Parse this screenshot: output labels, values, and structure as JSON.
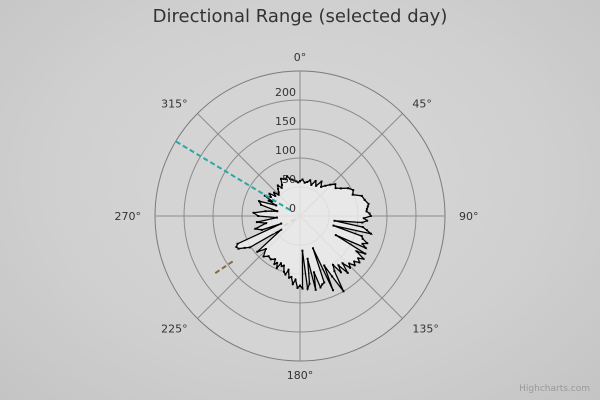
{
  "chart_data": {
    "type": "polar-line",
    "title": "Directional Range (selected day)",
    "credits": "Highcharts.com",
    "angle_labels": [
      "0°",
      "45°",
      "90°",
      "135°",
      "180°",
      "225°",
      "270°",
      "315°"
    ],
    "radial_tick_labels": [
      "0",
      "50",
      "100",
      "150",
      "200"
    ],
    "radial_range": [
      0,
      250
    ],
    "grid": true,
    "series": [
      {
        "type": "line",
        "color": "#000000",
        "points": [
          [
            0,
            60
          ],
          [
            4,
            63
          ],
          [
            8,
            58
          ],
          [
            12,
            60
          ],
          [
            16,
            64
          ],
          [
            20,
            57
          ],
          [
            24,
            66
          ],
          [
            28,
            59
          ],
          [
            32,
            70
          ],
          [
            36,
            62
          ],
          [
            40,
            68
          ],
          [
            44,
            75
          ],
          [
            48,
            82
          ],
          [
            52,
            78
          ],
          [
            56,
            85
          ],
          [
            60,
            96
          ],
          [
            64,
            102
          ],
          [
            68,
            98
          ],
          [
            72,
            112
          ],
          [
            76,
            115
          ],
          [
            80,
            120
          ],
          [
            82,
            118
          ],
          [
            84,
            116
          ],
          [
            86,
            115
          ],
          [
            88,
            120
          ],
          [
            90,
            122
          ],
          [
            92,
            110
          ],
          [
            94,
            116
          ],
          [
            96,
            108
          ],
          [
            98,
            60
          ],
          [
            100,
            110
          ],
          [
            102,
            118
          ],
          [
            104,
            126
          ],
          [
            106,
            60
          ],
          [
            108,
            112
          ],
          [
            110,
            115
          ],
          [
            112,
            125
          ],
          [
            114,
            118
          ],
          [
            116,
            126
          ],
          [
            118,
            70
          ],
          [
            120,
            130
          ],
          [
            122,
            115
          ],
          [
            124,
            132
          ],
          [
            126,
            124
          ],
          [
            128,
            130
          ],
          [
            130,
            122
          ],
          [
            132,
            127
          ],
          [
            134,
            118
          ],
          [
            136,
            124
          ],
          [
            138,
            110
          ],
          [
            140,
            128
          ],
          [
            142,
            108
          ],
          [
            144,
            120
          ],
          [
            146,
            102
          ],
          [
            148,
            112
          ],
          [
            150,
            150
          ],
          [
            152,
            118
          ],
          [
            154,
            95
          ],
          [
            156,
            140
          ],
          [
            158,
            60
          ],
          [
            160,
            122
          ],
          [
            162,
            124
          ],
          [
            164,
            128
          ],
          [
            166,
            100
          ],
          [
            168,
            130
          ],
          [
            170,
            75
          ],
          [
            172,
            118
          ],
          [
            174,
            126
          ],
          [
            176,
            60
          ],
          [
            178,
            125
          ],
          [
            180,
            120
          ],
          [
            182,
            124
          ],
          [
            184,
            110
          ],
          [
            186,
            118
          ],
          [
            188,
            106
          ],
          [
            190,
            108
          ],
          [
            192,
            95
          ],
          [
            194,
            104
          ],
          [
            196,
            100
          ],
          [
            198,
            90
          ],
          [
            200,
            92
          ],
          [
            202,
            88
          ],
          [
            204,
            98
          ],
          [
            206,
            90
          ],
          [
            208,
            94
          ],
          [
            210,
            86
          ],
          [
            214,
            90
          ],
          [
            218,
            88
          ],
          [
            222,
            94
          ],
          [
            226,
            82
          ],
          [
            230,
            96
          ],
          [
            234,
            40
          ],
          [
            238,
            102
          ],
          [
            240,
            110
          ],
          [
            242,
            120
          ],
          [
            244,
            122
          ],
          [
            246,
            118
          ],
          [
            248,
            35
          ],
          [
            250,
            70
          ],
          [
            254,
            80
          ],
          [
            258,
            60
          ],
          [
            262,
            75
          ],
          [
            266,
            40
          ],
          [
            270,
            72
          ],
          [
            274,
            80
          ],
          [
            278,
            60
          ],
          [
            282,
            40
          ],
          [
            286,
            70
          ],
          [
            290,
            75
          ],
          [
            294,
            45
          ],
          [
            296,
            60
          ],
          [
            298,
            55
          ],
          [
            300,
            70
          ],
          [
            303,
            60
          ],
          [
            306,
            65
          ],
          [
            309,
            55
          ],
          [
            312,
            60
          ],
          [
            315,
            52
          ],
          [
            318,
            55
          ],
          [
            321,
            60
          ],
          [
            324,
            65
          ],
          [
            327,
            58
          ],
          [
            330,
            62
          ],
          [
            333,
            72
          ],
          [
            336,
            70
          ],
          [
            339,
            68
          ],
          [
            342,
            72
          ],
          [
            345,
            66
          ],
          [
            348,
            64
          ],
          [
            351,
            62
          ],
          [
            354,
            60
          ],
          [
            357,
            58
          ],
          [
            360,
            60
          ]
        ]
      },
      {
        "type": "dashed-ray",
        "color": "#2aa6a6",
        "angle": 301,
        "from": 20,
        "to": 250
      },
      {
        "type": "dashed-ray",
        "color": "#8a6a3a",
        "angle": 236,
        "from": 140,
        "to": 180
      },
      {
        "type": "dashed-ray",
        "color": "#d8d8d8",
        "angle": 238,
        "from": 10,
        "to": 55
      }
    ]
  }
}
